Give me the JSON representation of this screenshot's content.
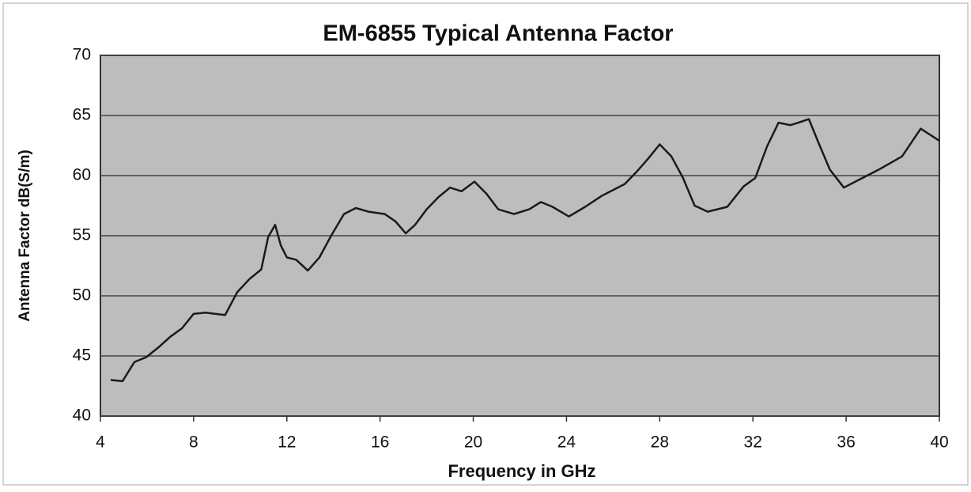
{
  "chart_data": {
    "type": "line",
    "title": "EM-6855 Typical Antenna Factor",
    "x_label": "Frequency in GHz",
    "y_label": "Antenna Factor dB(S/m)",
    "x": [
      4.44,
      4.95,
      5.46,
      5.97,
      6.48,
      7.0,
      7.5,
      8.0,
      8.5,
      9.35,
      9.87,
      10.4,
      10.9,
      11.2,
      11.5,
      11.74,
      12.0,
      12.4,
      12.9,
      13.4,
      13.9,
      14.45,
      14.96,
      15.5,
      16.2,
      16.66,
      17.1,
      17.5,
      18.0,
      18.5,
      19.0,
      19.5,
      20.05,
      20.56,
      21.07,
      21.75,
      22.4,
      22.9,
      23.4,
      24.1,
      24.8,
      25.5,
      26.5,
      27.0,
      27.5,
      28.0,
      28.5,
      29.0,
      29.5,
      30.06,
      30.9,
      31.6,
      32.1,
      32.6,
      33.1,
      33.6,
      33.95,
      34.4,
      34.8,
      35.3,
      35.9,
      36.7,
      37.4,
      38.4,
      39.2,
      40.0
    ],
    "series": [
      {
        "name": "Antenna Factor",
        "color": "#1a1a1a",
        "values": [
          43.0,
          42.9,
          44.5,
          44.9,
          45.7,
          46.6,
          47.3,
          48.5,
          48.6,
          48.4,
          50.3,
          51.4,
          52.2,
          54.9,
          55.9,
          54.2,
          53.2,
          53.0,
          52.1,
          53.2,
          55.0,
          56.8,
          57.3,
          57.0,
          56.8,
          56.2,
          55.2,
          55.9,
          57.2,
          58.2,
          59.0,
          58.7,
          59.5,
          58.5,
          57.2,
          56.8,
          57.2,
          57.8,
          57.4,
          56.6,
          57.4,
          58.3,
          59.3,
          60.3,
          61.4,
          62.6,
          61.6,
          59.8,
          57.5,
          57.0,
          57.4,
          59.1,
          59.8,
          62.4,
          64.4,
          64.2,
          64.4,
          64.7,
          62.8,
          60.5,
          59.0,
          59.8,
          60.5,
          61.6,
          63.9,
          62.9
        ]
      }
    ],
    "xlim": [
      4,
      40
    ],
    "xticks": [
      4,
      8,
      12,
      16,
      20,
      24,
      28,
      32,
      36,
      40
    ],
    "ylim": [
      40,
      70
    ],
    "yticks": [
      40,
      45,
      50,
      55,
      60,
      65,
      70
    ],
    "grid": true
  }
}
